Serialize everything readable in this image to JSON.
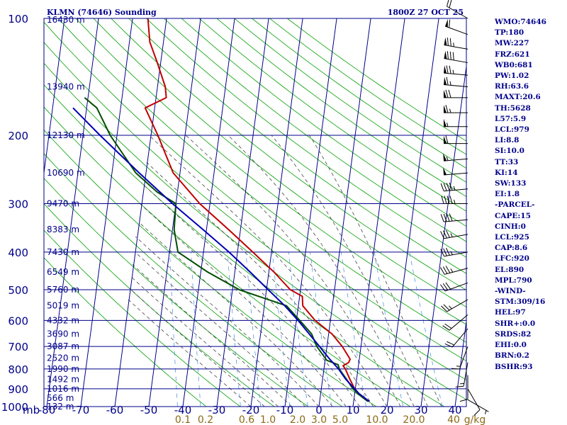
{
  "chart_data": {
    "type": "line",
    "title": "KLMN (74646) Sounding",
    "valid_time": "1800Z 27 OCT 25",
    "y_axis": {
      "label": "mb",
      "scale": "log",
      "ylim": [
        1000,
        100
      ],
      "ticks": [
        100,
        200,
        300,
        400,
        500,
        600,
        700,
        800,
        900,
        1000
      ]
    },
    "x_axis": {
      "xlim": [
        -80,
        40
      ],
      "ticks": [
        -80,
        -70,
        -60,
        -50,
        -40,
        -30,
        -20,
        -10,
        0,
        10,
        20,
        30,
        40
      ],
      "tick_labels": [
        "-80",
        "-70",
        "-60",
        "-50",
        "-40",
        "-30",
        "-20",
        "-10",
        "0",
        "10",
        "20",
        "30",
        "40"
      ]
    },
    "mixing_ratio_labels": [
      "0.1",
      "0.2",
      "0.6",
      "1.0",
      "2.0",
      "3.0",
      "5.0",
      "10.0",
      "20.0",
      "40",
      "g/kg"
    ],
    "height_labels": [
      {
        "p": 100,
        "text": "16430 m"
      },
      {
        "p": 150,
        "text": "13940 m"
      },
      {
        "p": 200,
        "text": "12130 m"
      },
      {
        "p": 250,
        "text": "10690 m"
      },
      {
        "p": 300,
        "text": "9470 m"
      },
      {
        "p": 350,
        "text": "8383 m"
      },
      {
        "p": 400,
        "text": "7430 m"
      },
      {
        "p": 450,
        "text": "6549 m"
      },
      {
        "p": 500,
        "text": "5760 m"
      },
      {
        "p": 550,
        "text": "5019 m"
      },
      {
        "p": 600,
        "text": "4332 m"
      },
      {
        "p": 650,
        "text": "3690 m"
      },
      {
        "p": 700,
        "text": "3087 m"
      },
      {
        "p": 750,
        "text": "2520 m"
      },
      {
        "p": 800,
        "text": "1990 m"
      },
      {
        "p": 850,
        "text": "1492 m"
      },
      {
        "p": 900,
        "text": "1016 m"
      },
      {
        "p": 950,
        "text": "566 m"
      },
      {
        "p": 1000,
        "text": "132 m"
      }
    ],
    "series": [
      {
        "name": "Temperature",
        "color": "#c00000",
        "points": [
          {
            "p": 970,
            "t": 14.6
          },
          {
            "p": 930,
            "t": 11.5
          },
          {
            "p": 900,
            "t": 9.8
          },
          {
            "p": 850,
            "t": 8.0
          },
          {
            "p": 800,
            "t": 6.3
          },
          {
            "p": 785,
            "t": 5.5
          },
          {
            "p": 770,
            "t": 7.0
          },
          {
            "p": 755,
            "t": 7.3
          },
          {
            "p": 700,
            "t": 4.5
          },
          {
            "p": 650,
            "t": 1.0
          },
          {
            "p": 600,
            "t": -4.5
          },
          {
            "p": 550,
            "t": -8.7
          },
          {
            "p": 520,
            "t": -9.2
          },
          {
            "p": 500,
            "t": -13.0
          },
          {
            "p": 450,
            "t": -18.5
          },
          {
            "p": 400,
            "t": -25.5
          },
          {
            "p": 350,
            "t": -33.5
          },
          {
            "p": 300,
            "t": -43.0
          },
          {
            "p": 250,
            "t": -52.0
          },
          {
            "p": 200,
            "t": -58.0
          },
          {
            "p": 170,
            "t": -62.8
          },
          {
            "p": 160,
            "t": -57.0
          },
          {
            "p": 150,
            "t": -57.7
          },
          {
            "p": 130,
            "t": -61.0
          },
          {
            "p": 115,
            "t": -64.0
          },
          {
            "p": 100,
            "t": -65.5
          }
        ]
      },
      {
        "name": "Dewpoint",
        "color": "#004d00",
        "points": [
          {
            "p": 970,
            "t": 14.2
          },
          {
            "p": 930,
            "t": 11.2
          },
          {
            "p": 900,
            "t": 9.3
          },
          {
            "p": 850,
            "t": 7.0
          },
          {
            "p": 800,
            "t": 4.5
          },
          {
            "p": 780,
            "t": 4.0
          },
          {
            "p": 760,
            "t": 0.5
          },
          {
            "p": 700,
            "t": -3.0
          },
          {
            "p": 650,
            "t": -5.0
          },
          {
            "p": 600,
            "t": -9.0
          },
          {
            "p": 550,
            "t": -13.5
          },
          {
            "p": 520,
            "t": -22.0
          },
          {
            "p": 500,
            "t": -28.0
          },
          {
            "p": 450,
            "t": -38.0
          },
          {
            "p": 400,
            "t": -47.5
          },
          {
            "p": 350,
            "t": -49.5
          },
          {
            "p": 300,
            "t": -50.0
          },
          {
            "p": 280,
            "t": -56.0
          },
          {
            "p": 250,
            "t": -63.0
          },
          {
            "p": 200,
            "t": -72.0
          },
          {
            "p": 170,
            "t": -77.0
          },
          {
            "p": 160,
            "t": -81.0
          }
        ]
      },
      {
        "name": "Parcel",
        "color": "#0000b3",
        "points": [
          {
            "p": 970,
            "t": 14.6
          },
          {
            "p": 925,
            "t": 11.2
          },
          {
            "p": 900,
            "t": 9.8
          },
          {
            "p": 850,
            "t": 6.8
          },
          {
            "p": 800,
            "t": 4.3
          },
          {
            "p": 750,
            "t": 1.0
          },
          {
            "p": 700,
            "t": -2.2
          },
          {
            "p": 650,
            "t": -5.7
          },
          {
            "p": 600,
            "t": -9.5
          },
          {
            "p": 550,
            "t": -14.0
          },
          {
            "p": 500,
            "t": -19.5
          },
          {
            "p": 450,
            "t": -25.5
          },
          {
            "p": 400,
            "t": -32.5
          },
          {
            "p": 350,
            "t": -41.0
          },
          {
            "p": 300,
            "t": -51.0
          },
          {
            "p": 250,
            "t": -62.0
          },
          {
            "p": 200,
            "t": -75.0
          },
          {
            "p": 170,
            "t": -84.0
          }
        ]
      }
    ],
    "wind_barbs": [
      {
        "p": 100,
        "dir": 300,
        "spd": 20
      },
      {
        "p": 110,
        "dir": 290,
        "spd": 60
      },
      {
        "p": 120,
        "dir": 280,
        "spd": 75
      },
      {
        "p": 130,
        "dir": 280,
        "spd": 80
      },
      {
        "p": 140,
        "dir": 275,
        "spd": 75
      },
      {
        "p": 150,
        "dir": 275,
        "spd": 65
      },
      {
        "p": 160,
        "dir": 270,
        "spd": 70
      },
      {
        "p": 175,
        "dir": 270,
        "spd": 65
      },
      {
        "p": 190,
        "dir": 270,
        "spd": 55
      },
      {
        "p": 210,
        "dir": 270,
        "spd": 60
      },
      {
        "p": 230,
        "dir": 265,
        "spd": 55
      },
      {
        "p": 250,
        "dir": 265,
        "spd": 50
      },
      {
        "p": 275,
        "dir": 265,
        "spd": 45
      },
      {
        "p": 300,
        "dir": 270,
        "spd": 45
      },
      {
        "p": 330,
        "dir": 265,
        "spd": 40
      },
      {
        "p": 360,
        "dir": 260,
        "spd": 35
      },
      {
        "p": 400,
        "dir": 260,
        "spd": 35
      },
      {
        "p": 440,
        "dir": 255,
        "spd": 35
      },
      {
        "p": 480,
        "dir": 250,
        "spd": 30
      },
      {
        "p": 530,
        "dir": 240,
        "spd": 25
      },
      {
        "p": 580,
        "dir": 230,
        "spd": 20
      },
      {
        "p": 630,
        "dir": 220,
        "spd": 20
      },
      {
        "p": 700,
        "dir": 200,
        "spd": 15
      },
      {
        "p": 770,
        "dir": 190,
        "spd": 15
      },
      {
        "p": 830,
        "dir": 180,
        "spd": 10
      },
      {
        "p": 900,
        "dir": 150,
        "spd": 10
      },
      {
        "p": 960,
        "dir": 120,
        "spd": 5
      }
    ],
    "indices": [
      "WMO:74646",
      "TP:180",
      "MW:227",
      "FRZ:621",
      "WB0:681",
      "PW:1.02",
      "RH:63.6",
      "MAXT:20.6",
      "TH:5628",
      "L57:5.9",
      "LCL:979",
      "LI:8.8",
      "SI:10.0",
      "TT:33",
      "KI:14",
      "SW:133",
      "EI:1.8",
      "-PARCEL-",
      "CAPE:15",
      "CINH:0",
      "LCL:925",
      "CAP:8.6",
      "LFC:920",
      "EL:890",
      "MPL:790",
      "-WIND-",
      "STM:309/16",
      "HEL:97",
      "SHR+:0.0",
      "SRDS:82",
      "EHI:0.0",
      "BRN:0.2",
      "BSHR:93"
    ],
    "colors": {
      "isobar": "#00008b",
      "isotherm": "#00008b",
      "dry_adiabat": "#00a000",
      "moist_adiabat": "#444444",
      "mixing_ratio": "#3a8fe0",
      "labels": "#00008b",
      "mixing_ratio_labels": "#8b6914"
    }
  }
}
